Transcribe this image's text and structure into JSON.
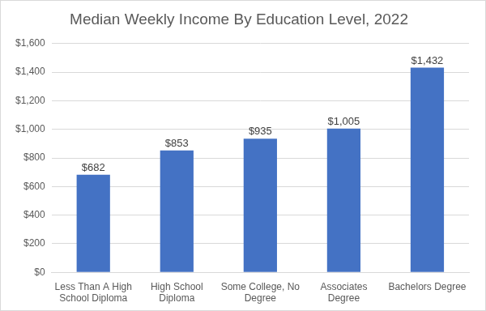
{
  "chart_data": {
    "type": "bar",
    "title": "Median Weekly Income By Education Level, 2022",
    "categories": [
      "Less Than A High School Diploma",
      "High School Diploma",
      "Some College, No Degree",
      "Associates Degree",
      "Bachelors Degree"
    ],
    "values": [
      682,
      853,
      935,
      1005,
      1432
    ],
    "value_labels": [
      "$682",
      "$853",
      "$935",
      "$1,005",
      "$1,432"
    ],
    "data_labels": true,
    "color": "#4472c4",
    "ylim": [
      0,
      1600
    ],
    "yticks": [
      {
        "value": 0,
        "label": "$0"
      },
      {
        "value": 200,
        "label": "$200"
      },
      {
        "value": 400,
        "label": "$400"
      },
      {
        "value": 600,
        "label": "$600"
      },
      {
        "value": 800,
        "label": "$800"
      },
      {
        "value": 1000,
        "label": "$1,000"
      },
      {
        "value": 1200,
        "label": "$1,200"
      },
      {
        "value": 1400,
        "label": "$1,400"
      },
      {
        "value": 1600,
        "label": "$1,600"
      }
    ],
    "grid": true
  }
}
